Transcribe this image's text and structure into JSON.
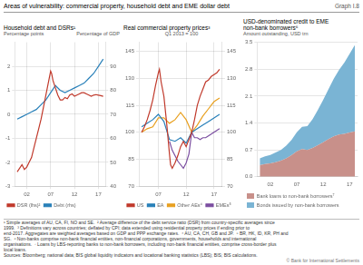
{
  "title": "Areas of vulnerability: commercial property, household debt and EME dollar debt",
  "graph_label": "Graph I.8",
  "chart_data": [
    {
      "type": "line",
      "title": "Household debt and DSRs¹",
      "ylabel": "Percentage points",
      "y2label": "Percentage of GDP",
      "series": [
        {
          "name": "DSR (lhs)²",
          "color": "#c0392b",
          "x": [
            2000,
            2001,
            2001.5,
            2002,
            2002.5,
            2003,
            2003.5,
            2004,
            2004.5,
            2005,
            2005.5,
            2006,
            2006.5,
            2007,
            2007.2,
            2007.5,
            2008,
            2008.5,
            2009,
            2009.5,
            2010,
            2010.5,
            2011,
            2011.5,
            2012,
            2012.5,
            2013,
            2013.5,
            2014,
            2014.5,
            2015,
            2015.5,
            2016,
            2016.5,
            2017,
            2017.5,
            2018
          ],
          "values": [
            -2.4,
            -2.1,
            -2.3,
            -2.2,
            -2.0,
            -1.8,
            -1.4,
            -1.0,
            -0.6,
            -0.2,
            0.3,
            0.8,
            1.3,
            1.8,
            1.7,
            1.4,
            1.1,
            0.8,
            0.6,
            0.6,
            0.7,
            0.65,
            0.8,
            0.85,
            0.75,
            0.8,
            0.85,
            0.9,
            0.9,
            0.85,
            0.8,
            0.75,
            0.8,
            0.82,
            0.8,
            0.78,
            0.75
          ]
        },
        {
          "name": "Debt (rhs)",
          "color": "#2980b9",
          "axis": "y2",
          "x": [
            2000,
            2001,
            2002,
            2003,
            2004,
            2005,
            2006,
            2007,
            2008,
            2009,
            2010,
            2011,
            2012,
            2013,
            2014,
            2015,
            2016,
            2017,
            2018
          ],
          "values": [
            68,
            69,
            70,
            71,
            72,
            74,
            76,
            79,
            82,
            80,
            79,
            80,
            81,
            82,
            83,
            85,
            87,
            90,
            93
          ]
        }
      ],
      "xlim": [
        1999.5,
        2018.5
      ],
      "xticks": [
        {
          "value": 2002,
          "label": "02"
        },
        {
          "value": 2007,
          "label": "07"
        },
        {
          "value": 2012,
          "label": "12"
        },
        {
          "value": 2017,
          "label": "17"
        }
      ],
      "ylim": [
        -3,
        3
      ],
      "yticks": [
        -3,
        -2,
        -1,
        0,
        1,
        2
      ],
      "y2lim": [
        40,
        100
      ],
      "y2ticks": [
        40,
        50,
        60,
        70,
        80,
        90
      ],
      "grid": true,
      "legend": "bottom"
    },
    {
      "type": "line",
      "title": "Real commercial property prices³",
      "subtitle": "Q1 2013 = 100",
      "series": [
        {
          "name": "US",
          "color": "#c0392b",
          "x": [
            2004,
            2004.5,
            2005,
            2005.5,
            2006,
            2006.5,
            2007,
            2007.2,
            2007.5,
            2008,
            2008.5,
            2009,
            2009.2,
            2009.5,
            2010,
            2010.5,
            2011,
            2011.5,
            2012,
            2012.5,
            2013,
            2013.5,
            2014,
            2014.5,
            2015,
            2015.5,
            2016,
            2016.5,
            2017,
            2017.5,
            2018
          ],
          "values": [
            100,
            103,
            107,
            112,
            118,
            126,
            133,
            135,
            128,
            120,
            105,
            88,
            82,
            80,
            83,
            87,
            92,
            95,
            92,
            96,
            100,
            107,
            115,
            120,
            124,
            128,
            129,
            131,
            132,
            133,
            135
          ]
        },
        {
          "name": "EA",
          "color": "#2980b9",
          "x": [
            2004,
            2005,
            2006,
            2007,
            2008,
            2009,
            2010,
            2011,
            2012,
            2013,
            2014,
            2015,
            2016,
            2017,
            2018
          ],
          "values": [
            103,
            105,
            107,
            110,
            106,
            96,
            95,
            97,
            94,
            100,
            102,
            104,
            106,
            108,
            110
          ]
        },
        {
          "name": "Other AEs⁴",
          "color": "#e8a020",
          "x": [
            2004,
            2005,
            2006,
            2007,
            2008,
            2009,
            2010,
            2011,
            2012,
            2013,
            2014,
            2015,
            2016,
            2017,
            2018
          ],
          "values": [
            100,
            102,
            103,
            108,
            108,
            105,
            107,
            111,
            107,
            100,
            104,
            109,
            113,
            117,
            119
          ]
        },
        {
          "name": "EMEs⁵",
          "color": "#7b4ea0",
          "x": [
            2009,
            2009.5,
            2010,
            2010.5,
            2011,
            2011.5,
            2012,
            2012.5,
            2013,
            2013.5,
            2014,
            2014.5,
            2015,
            2015.5,
            2016,
            2016.5,
            2017,
            2017.5,
            2018
          ],
          "values": [
            95,
            90,
            87,
            84,
            82,
            80,
            83,
            88,
            100,
            97,
            97,
            96,
            97,
            97,
            98,
            99,
            100,
            101,
            102
          ]
        }
      ],
      "xlim": [
        2003.5,
        2018.5
      ],
      "xticks": [
        {
          "value": 2007,
          "label": "07"
        },
        {
          "value": 2012,
          "label": "12"
        },
        {
          "value": 2017,
          "label": "17"
        }
      ],
      "ylim": [
        70,
        150
      ],
      "yticks": [
        70,
        85,
        100,
        115,
        130,
        145
      ],
      "y2lim": [
        70,
        150
      ],
      "y2ticks": [
        70,
        85,
        100,
        115,
        130,
        145
      ],
      "grid": true,
      "legend": "bottom"
    },
    {
      "type": "area",
      "stacked": true,
      "title": "USD-denominated credit to EME\nnon-bank borrowers⁶",
      "ylabel": "Amount outstanding, USD trn",
      "x": [
        2000,
        2001,
        2002,
        2003,
        2004,
        2005,
        2006,
        2007,
        2008,
        2009,
        2010,
        2011,
        2012,
        2013,
        2014,
        2015,
        2016,
        2017,
        2018
      ],
      "series": [
        {
          "name": "Bank loans to non-bank borrowers⁷",
          "color": "#c8908a",
          "values": [
            0.3,
            0.33,
            0.35,
            0.38,
            0.42,
            0.48,
            0.56,
            0.66,
            0.72,
            0.7,
            0.75,
            0.82,
            0.9,
            0.98,
            1.05,
            1.1,
            1.12,
            1.15,
            1.18
          ]
        },
        {
          "name": "Bonds issued by non-bank borrowers",
          "color": "#7ab4d4",
          "values": [
            0.18,
            0.2,
            0.22,
            0.25,
            0.28,
            0.33,
            0.4,
            0.5,
            0.58,
            0.62,
            0.75,
            0.92,
            1.1,
            1.3,
            1.5,
            1.68,
            1.85,
            2.05,
            2.25
          ]
        }
      ],
      "xlim": [
        1999.5,
        2018.5
      ],
      "xticks": [
        {
          "value": 2002,
          "label": "02"
        },
        {
          "value": 2007,
          "label": "07"
        },
        {
          "value": 2012,
          "label": "12"
        },
        {
          "value": 2017,
          "label": "17"
        }
      ],
      "ylim": [
        0.0,
        3.5
      ],
      "yticks": [
        {
          "value": 0.0,
          "label": "0.0"
        },
        0.7,
        1.4,
        2.1,
        2.8,
        3.5
      ],
      "grid": "y",
      "legend": "bottom"
    }
  ],
  "footnotes": [
    "¹ Simple averages of AU, CA, FI, NO and SE.  ² Average difference of the debt service ratio (DSR) from country-specific averages since",
    "1999.  ³ Definitions vary across countries; deflated by CPI; data extended using residential property prices if ending prior to",
    "end-2017. Aggregates are weighted averages based on GDP and PPP exchange rates.  ⁴ AU, CA, CH, GB and JP.  ⁵ BR, HK, ID, KR, PH and",
    "SG.  ⁶ Non-banks comprise non-bank financial entities, non-financial corporations, governments, households and international",
    "organisations.  ⁷ Loans by LBS-reporting banks to non-bank borrowers, including non-bank financial entities, comprise cross-border plus",
    "local loans."
  ],
  "sources": "Sources: Bloomberg; national data; BIS global liquidity indicators and locational banking statistics (LBS); BIS; BIS calculations.",
  "copyright": "© Bank for International Settlements"
}
